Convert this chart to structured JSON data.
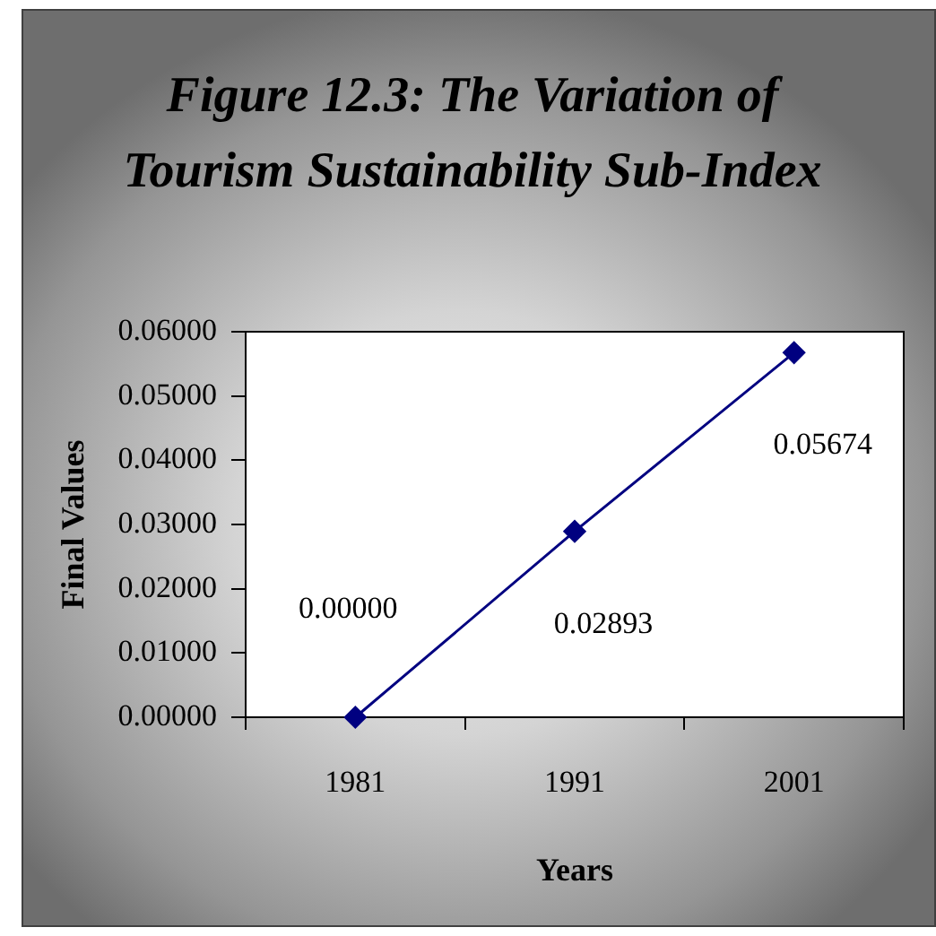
{
  "chart_data": {
    "type": "line",
    "title": "Figure 12.3: The Variation of Tourism Sustainability Sub-Index",
    "xlabel": "Years",
    "ylabel": "Final Values",
    "categories": [
      "1981",
      "1991",
      "2001"
    ],
    "values": [
      0,
      0.02893,
      0.05674
    ],
    "color": "#000080",
    "value_labels": [
      "0.00000",
      "0.02893",
      "0.05674"
    ],
    "ylim": [
      0,
      0.06
    ],
    "yticks": [
      {
        "value": 0,
        "label": "0.00000"
      },
      {
        "value": 0.01,
        "label": "0.01000"
      },
      {
        "value": 0.02,
        "label": "0.02000"
      },
      {
        "value": 0.03,
        "label": "0.03000"
      },
      {
        "value": 0.04,
        "label": "0.04000"
      },
      {
        "value": 0.05,
        "label": "0.05000"
      },
      {
        "value": 0.06,
        "label": "0.06000"
      }
    ],
    "grid": false,
    "legend": false,
    "marker": "diamond",
    "line_style": "solid"
  }
}
